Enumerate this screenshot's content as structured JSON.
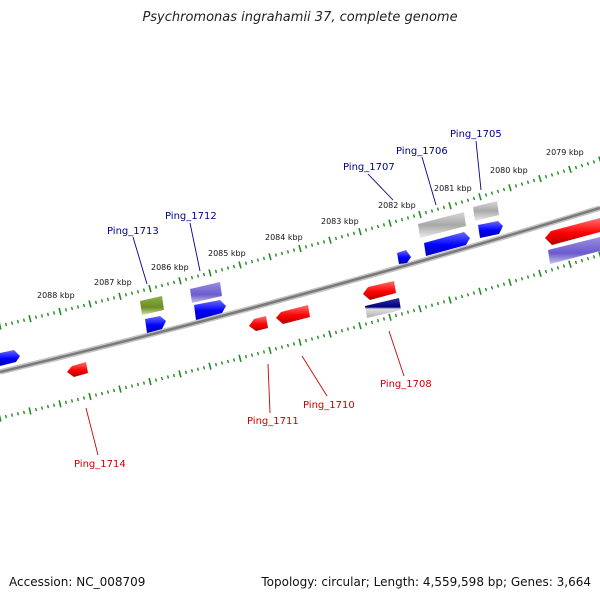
{
  "title": "Psychromonas ingrahamii 37, complete genome",
  "footer": {
    "accession": "Accession: NC_008709",
    "topology": "Topology: circular; Length: 4,559,598 bp; Genes: 3,664"
  },
  "colors": {
    "forward_label": "#00008b",
    "reverse_label": "#cc0000",
    "tick": "#228b22",
    "backbone": "#808080",
    "blue": "#0000ff",
    "red": "#ff0000",
    "lavender": "#6a5acd",
    "olive": "#6b8e23",
    "gray": "#b0b0b0",
    "navy": "#000080"
  },
  "ruler_labels": [
    "2079 kbp",
    "2080 kbp",
    "2081 kbp",
    "2082 kbp",
    "2083 kbp",
    "2084 kbp",
    "2085 kbp",
    "2086 kbp",
    "2087 kbp",
    "2088 kbp"
  ],
  "gene_labels": [
    {
      "text": "Ping_1705",
      "strand": "forward"
    },
    {
      "text": "Ping_1706",
      "strand": "forward"
    },
    {
      "text": "Ping_1707",
      "strand": "forward"
    },
    {
      "text": "Ping_1712",
      "strand": "forward"
    },
    {
      "text": "Ping_1713",
      "strand": "forward"
    },
    {
      "text": "Ping_1708",
      "strand": "reverse"
    },
    {
      "text": "Ping_1710",
      "strand": "reverse"
    },
    {
      "text": "Ping_1711",
      "strand": "reverse"
    },
    {
      "text": "Ping_1714",
      "strand": "reverse"
    }
  ]
}
